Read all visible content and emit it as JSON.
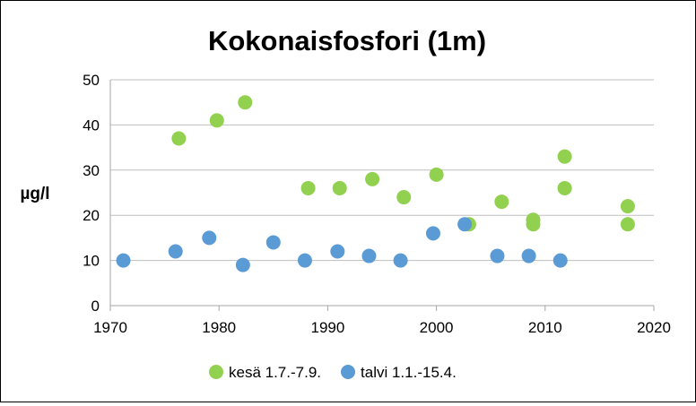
{
  "chart_data": {
    "type": "scatter",
    "title": "Kokonaisfosfori (1m)",
    "xlabel": "",
    "ylabel": "µg/l",
    "xlim": [
      1970,
      2020
    ],
    "ylim": [
      0,
      50
    ],
    "xticks": [
      1970,
      1980,
      1990,
      2000,
      2010,
      2020
    ],
    "yticks": [
      0,
      10,
      20,
      30,
      40,
      50
    ],
    "grid": "horizontal",
    "legend_position": "bottom",
    "series": [
      {
        "name": "kesä 1.7.-7.9.",
        "color": "#92D050",
        "points": [
          [
            1976.3,
            37
          ],
          [
            1979.8,
            41
          ],
          [
            1982.4,
            45
          ],
          [
            1988.2,
            26
          ],
          [
            1991.1,
            26
          ],
          [
            1994.1,
            28
          ],
          [
            1997.0,
            24
          ],
          [
            2000.0,
            29
          ],
          [
            2003.0,
            18
          ],
          [
            2006.0,
            23
          ],
          [
            2008.9,
            19
          ],
          [
            2008.9,
            18
          ],
          [
            2011.8,
            33
          ],
          [
            2011.8,
            26
          ],
          [
            2017.6,
            22
          ],
          [
            2017.6,
            18
          ]
        ]
      },
      {
        "name": "talvi 1.1.-15.4.",
        "color": "#5B9BD5",
        "points": [
          [
            1971.2,
            10
          ],
          [
            1976.0,
            12
          ],
          [
            1979.1,
            15
          ],
          [
            1982.2,
            9
          ],
          [
            1985.0,
            14
          ],
          [
            1987.9,
            10
          ],
          [
            1990.9,
            12
          ],
          [
            1993.8,
            11
          ],
          [
            1996.7,
            10
          ],
          [
            1999.7,
            16
          ],
          [
            2002.6,
            18
          ],
          [
            2005.6,
            11
          ],
          [
            2008.5,
            11
          ],
          [
            2011.4,
            10
          ]
        ]
      }
    ]
  }
}
